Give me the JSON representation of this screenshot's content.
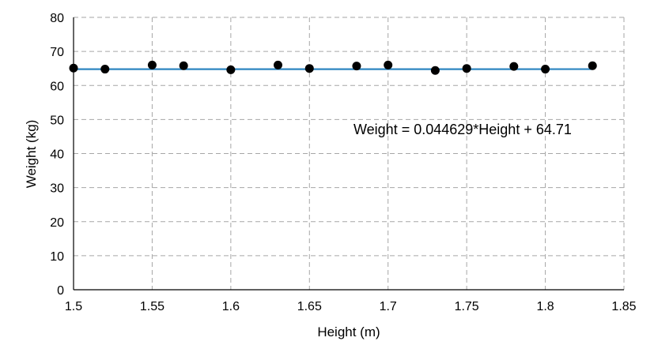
{
  "chart_data": {
    "type": "scatter",
    "title": "",
    "xlabel": "Height (m)",
    "ylabel": "Weight (kg)",
    "xlim": [
      1.5,
      1.85
    ],
    "ylim": [
      0,
      80
    ],
    "xticks": [
      1.5,
      1.55,
      1.6,
      1.65,
      1.7,
      1.75,
      1.8,
      1.85
    ],
    "yticks": [
      0,
      10,
      20,
      30,
      40,
      50,
      60,
      70,
      80
    ],
    "grid": true,
    "points": [
      {
        "x": 1.5,
        "y": 65.1
      },
      {
        "x": 1.52,
        "y": 64.8
      },
      {
        "x": 1.55,
        "y": 66.0
      },
      {
        "x": 1.57,
        "y": 65.8
      },
      {
        "x": 1.6,
        "y": 64.6
      },
      {
        "x": 1.63,
        "y": 66.0
      },
      {
        "x": 1.65,
        "y": 65.0
      },
      {
        "x": 1.68,
        "y": 65.7
      },
      {
        "x": 1.7,
        "y": 66.0
      },
      {
        "x": 1.73,
        "y": 64.4
      },
      {
        "x": 1.75,
        "y": 65.0
      },
      {
        "x": 1.78,
        "y": 65.6
      },
      {
        "x": 1.8,
        "y": 64.8
      },
      {
        "x": 1.83,
        "y": 65.8
      }
    ],
    "trendline": {
      "slope": 0.044629,
      "intercept": 64.71,
      "x_range": [
        1.5,
        1.83
      ],
      "equation_label": "Weight = 0.044629*Height + 64.71",
      "color": "#2e86c1"
    },
    "marker_color": "#000000",
    "grid_color": "#a6a6a6"
  }
}
